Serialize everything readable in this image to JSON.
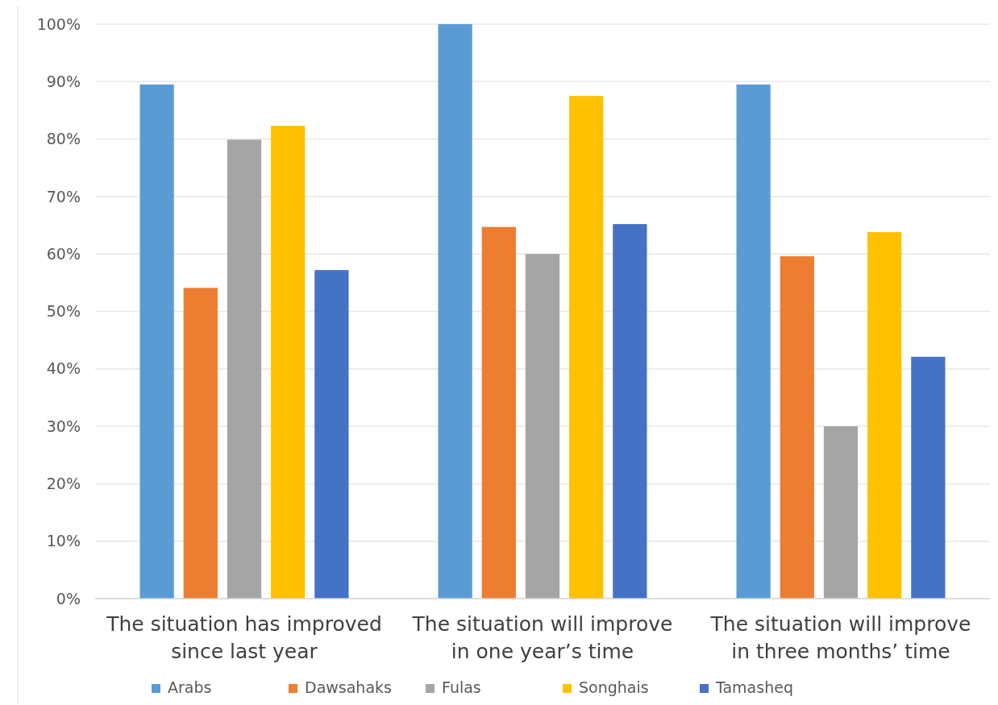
{
  "chart_data": {
    "type": "bar",
    "categories": [
      "The situation has improved since last year",
      "The situation will improve in one year’s time",
      "The situation will improve in three months’ time"
    ],
    "series": [
      {
        "name": "Arabs",
        "color": "#5b9bd5",
        "values": [
          89.5,
          100,
          89.5
        ]
      },
      {
        "name": "Dawsahaks",
        "color": "#ed7d31",
        "values": [
          54.1,
          64.7,
          59.6
        ]
      },
      {
        "name": "Fulas",
        "color": "#a5a5a5",
        "values": [
          79.9,
          60,
          30
        ]
      },
      {
        "name": "Songhais",
        "color": "#ffc000",
        "values": [
          82.3,
          87.5,
          63.8
        ]
      },
      {
        "name": "Tamasheq",
        "color": "#4472c4",
        "values": [
          57.2,
          65.2,
          42.1
        ]
      }
    ],
    "ylim": [
      0,
      100
    ],
    "yticks": [
      {
        "value": 0,
        "label": "0%"
      },
      {
        "value": 10,
        "label": "10%"
      },
      {
        "value": 20,
        "label": "20%"
      },
      {
        "value": 30,
        "label": "30%"
      },
      {
        "value": 40,
        "label": "40%"
      },
      {
        "value": 50,
        "label": "50%"
      },
      {
        "value": 60,
        "label": "60%"
      },
      {
        "value": 70,
        "label": "70%"
      },
      {
        "value": 80,
        "label": "80%"
      },
      {
        "value": 90,
        "label": "90%"
      },
      {
        "value": 100,
        "label": "100%"
      }
    ],
    "grid": "y",
    "legend": "bottom"
  }
}
